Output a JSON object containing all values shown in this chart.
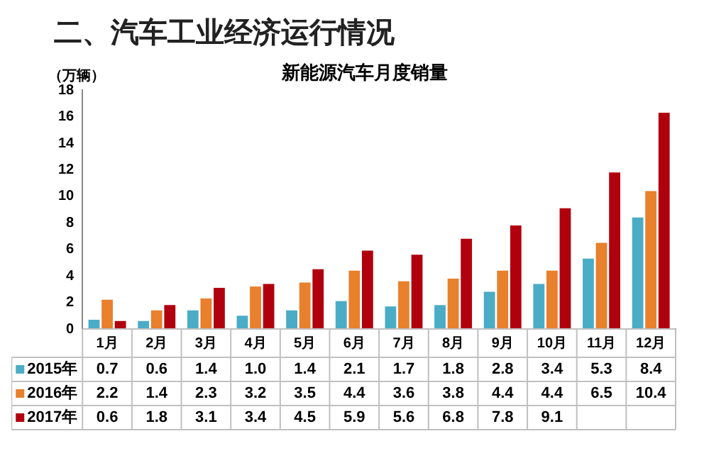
{
  "chart_data": {
    "type": "bar",
    "title": "二、汽车工业经济运行情况",
    "subtitle": "新能源汽车月度销量",
    "ylabel": "（万辆）",
    "categories": [
      "1月",
      "2月",
      "3月",
      "4月",
      "5月",
      "6月",
      "7月",
      "8月",
      "9月",
      "10月",
      "11月",
      "12月"
    ],
    "series": [
      {
        "name": "2015年",
        "color": "#4bacc6",
        "values": [
          0.7,
          0.6,
          1.4,
          1.0,
          1.4,
          2.1,
          1.7,
          1.8,
          2.8,
          3.4,
          5.3,
          8.4
        ],
        "value_labels": [
          "0.7",
          "0.6",
          "1.4",
          "1.0",
          "1.4",
          "2.1",
          "1.7",
          "1.8",
          "2.8",
          "3.4",
          "5.3",
          "8.4"
        ]
      },
      {
        "name": "2016年",
        "color": "#e8802c",
        "values": [
          2.2,
          1.4,
          2.3,
          3.2,
          3.5,
          4.4,
          3.6,
          3.8,
          4.4,
          4.4,
          6.5,
          10.4
        ],
        "value_labels": [
          "2.2",
          "1.4",
          "2.3",
          "3.2",
          "3.5",
          "4.4",
          "3.6",
          "3.8",
          "4.4",
          "4.4",
          "6.5",
          "10.4"
        ]
      },
      {
        "name": "2017年",
        "color": "#b0000e",
        "values": [
          0.6,
          1.8,
          3.1,
          3.4,
          4.5,
          5.9,
          5.6,
          6.8,
          7.8,
          9.1,
          11.8,
          16.3
        ],
        "value_labels": [
          "0.6",
          "1.8",
          "3.1",
          "3.4",
          "4.5",
          "5.9",
          "5.6",
          "6.8",
          "7.8",
          "9.1",
          null,
          null
        ]
      }
    ],
    "ylim": [
      0,
      18
    ],
    "yticks": [
      0,
      2,
      4,
      6,
      8,
      10,
      12,
      14,
      16,
      18
    ],
    "grid": false,
    "legend": "bottom left"
  }
}
